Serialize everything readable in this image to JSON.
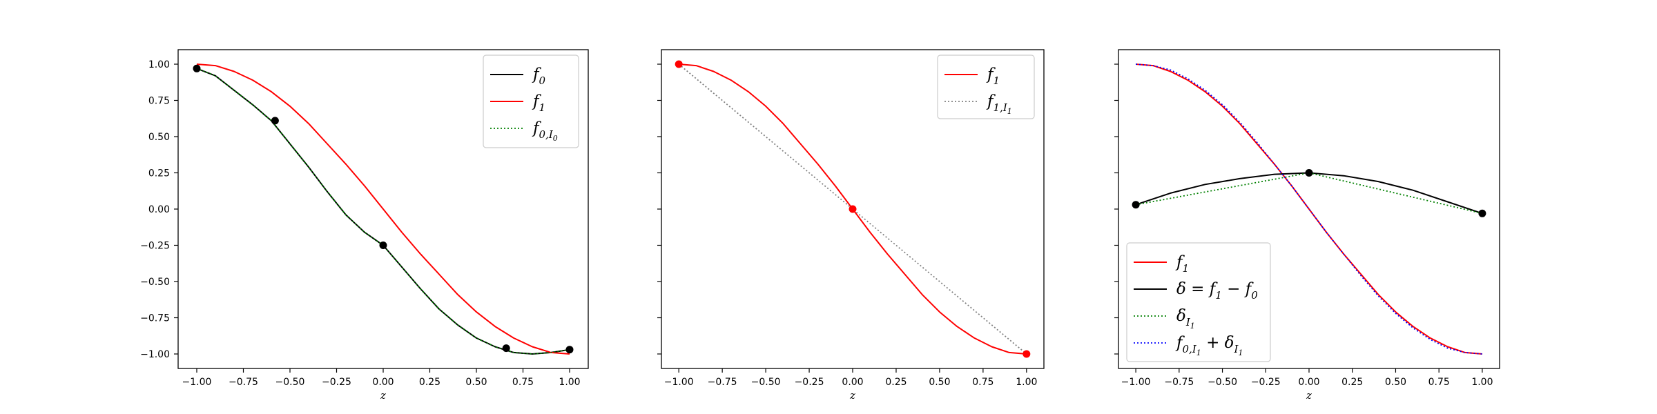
{
  "chart_data": [
    {
      "type": "line",
      "xlabel": "z",
      "ylabel": "",
      "xlim": [
        -1.1,
        1.1
      ],
      "ylim": [
        -1.1,
        1.1
      ],
      "xticks": [
        "−1.00",
        "−0.75",
        "−0.50",
        "−0.25",
        "0.00",
        "0.25",
        "0.50",
        "0.75",
        "1.00"
      ],
      "yticks": [
        "−1.00",
        "−0.75",
        "−0.50",
        "−0.25",
        "0.00",
        "0.25",
        "0.50",
        "0.75",
        "1.00"
      ],
      "ytick_labels_shown": true,
      "legend_position": "upper-right",
      "series": [
        {
          "legend": "f_0",
          "color": "#000000",
          "style": "solid",
          "x": [
            -1.0,
            -0.9,
            -0.8,
            -0.7,
            -0.6,
            -0.5,
            -0.4,
            -0.3,
            -0.2,
            -0.1,
            0.0,
            0.1,
            0.2,
            0.3,
            0.4,
            0.5,
            0.6,
            0.7,
            0.8,
            0.9,
            1.0
          ],
          "y": [
            0.97,
            0.92,
            0.82,
            0.72,
            0.61,
            0.45,
            0.29,
            0.12,
            -0.04,
            -0.16,
            -0.25,
            -0.4,
            -0.55,
            -0.69,
            -0.8,
            -0.89,
            -0.95,
            -0.99,
            -1.0,
            -0.99,
            -0.97
          ]
        },
        {
          "legend": "f_1",
          "color": "#ff0000",
          "style": "solid",
          "x": [
            -1.0,
            -0.9,
            -0.8,
            -0.7,
            -0.6,
            -0.5,
            -0.4,
            -0.3,
            -0.2,
            -0.1,
            0.0,
            0.1,
            0.2,
            0.3,
            0.4,
            0.5,
            0.6,
            0.7,
            0.8,
            0.9,
            1.0
          ],
          "y": [
            1.0,
            0.99,
            0.95,
            0.89,
            0.81,
            0.71,
            0.59,
            0.45,
            0.31,
            0.16,
            0.0,
            -0.16,
            -0.31,
            -0.45,
            -0.59,
            -0.71,
            -0.81,
            -0.89,
            -0.95,
            -0.99,
            -1.0
          ]
        },
        {
          "legend": "f_{0,I_0}",
          "color": "#008000",
          "style": "dotted",
          "x": [
            -1.0,
            -0.9,
            -0.8,
            -0.7,
            -0.6,
            -0.5,
            -0.4,
            -0.3,
            -0.2,
            -0.1,
            0.0,
            0.1,
            0.2,
            0.3,
            0.4,
            0.5,
            0.6,
            0.7,
            0.8,
            0.9,
            1.0
          ],
          "y": [
            0.97,
            0.92,
            0.82,
            0.72,
            0.61,
            0.45,
            0.29,
            0.12,
            -0.04,
            -0.16,
            -0.25,
            -0.4,
            -0.55,
            -0.69,
            -0.8,
            -0.89,
            -0.95,
            -0.99,
            -1.0,
            -0.99,
            -0.97
          ]
        }
      ],
      "markers": [
        {
          "color": "#000000",
          "x": [
            -1.0,
            -0.58,
            0.0,
            0.66,
            1.0
          ],
          "y": [
            0.97,
            0.61,
            -0.25,
            -0.96,
            -0.97
          ]
        }
      ]
    },
    {
      "type": "line",
      "xlabel": "z",
      "ylabel": "",
      "xlim": [
        -1.1,
        1.1
      ],
      "ylim": [
        -1.1,
        1.1
      ],
      "xticks": [
        "−1.00",
        "−0.75",
        "−0.50",
        "−0.25",
        "0.00",
        "0.25",
        "0.50",
        "0.75",
        "1.00"
      ],
      "yticks": [
        "−1.00",
        "−0.75",
        "−0.50",
        "−0.25",
        "0.00",
        "0.25",
        "0.50",
        "0.75",
        "1.00"
      ],
      "ytick_labels_shown": false,
      "legend_position": "upper-right",
      "series": [
        {
          "legend": "f_1",
          "color": "#ff0000",
          "style": "solid",
          "x": [
            -1.0,
            -0.9,
            -0.8,
            -0.7,
            -0.6,
            -0.5,
            -0.4,
            -0.3,
            -0.2,
            -0.1,
            0.0,
            0.1,
            0.2,
            0.3,
            0.4,
            0.5,
            0.6,
            0.7,
            0.8,
            0.9,
            1.0
          ],
          "y": [
            1.0,
            0.99,
            0.95,
            0.89,
            0.81,
            0.71,
            0.59,
            0.45,
            0.31,
            0.16,
            0.0,
            -0.16,
            -0.31,
            -0.45,
            -0.59,
            -0.71,
            -0.81,
            -0.89,
            -0.95,
            -0.99,
            -1.0
          ]
        },
        {
          "legend": "f_{1,I_1}",
          "color": "#808080",
          "style": "dotted",
          "x": [
            -1.0,
            0.0,
            1.0
          ],
          "y": [
            1.0,
            0.0,
            -1.0
          ]
        }
      ],
      "markers": [
        {
          "color": "#ff0000",
          "x": [
            -1.0,
            0.0,
            1.0
          ],
          "y": [
            1.0,
            0.0,
            -1.0
          ]
        }
      ]
    },
    {
      "type": "line",
      "xlabel": "z",
      "ylabel": "",
      "xlim": [
        -1.1,
        1.1
      ],
      "ylim": [
        -1.1,
        1.1
      ],
      "xticks": [
        "−1.00",
        "−0.75",
        "−0.50",
        "−0.25",
        "0.00",
        "0.25",
        "0.50",
        "0.75",
        "1.00"
      ],
      "yticks": [
        "−1.00",
        "−0.75",
        "−0.50",
        "−0.25",
        "0.00",
        "0.25",
        "0.50",
        "0.75",
        "1.00"
      ],
      "ytick_labels_shown": false,
      "legend_position": "lower-left",
      "series": [
        {
          "legend": "f_1",
          "color": "#ff0000",
          "style": "solid",
          "x": [
            -1.0,
            -0.9,
            -0.8,
            -0.7,
            -0.6,
            -0.5,
            -0.4,
            -0.3,
            -0.2,
            -0.1,
            0.0,
            0.1,
            0.2,
            0.3,
            0.4,
            0.5,
            0.6,
            0.7,
            0.8,
            0.9,
            1.0
          ],
          "y": [
            1.0,
            0.99,
            0.95,
            0.89,
            0.81,
            0.71,
            0.59,
            0.45,
            0.31,
            0.16,
            0.0,
            -0.16,
            -0.31,
            -0.45,
            -0.59,
            -0.71,
            -0.81,
            -0.89,
            -0.95,
            -0.99,
            -1.0
          ]
        },
        {
          "legend": "δ = f_1 − f_0",
          "color": "#000000",
          "style": "solid",
          "x": [
            -1.0,
            -0.8,
            -0.6,
            -0.4,
            -0.2,
            0.0,
            0.2,
            0.4,
            0.6,
            0.8,
            1.0
          ],
          "y": [
            0.03,
            0.11,
            0.17,
            0.21,
            0.24,
            0.25,
            0.23,
            0.19,
            0.13,
            0.05,
            -0.03
          ]
        },
        {
          "legend": "δ_{I_1}",
          "color": "#008000",
          "style": "dotted",
          "x": [
            -1.0,
            0.0,
            1.0
          ],
          "y": [
            0.03,
            0.25,
            -0.03
          ]
        },
        {
          "legend": "f_{0,I_1} + δ_{I_1}",
          "color": "#0000ff",
          "style": "dotted",
          "x": [
            -1.0,
            -0.9,
            -0.8,
            -0.7,
            -0.6,
            -0.5,
            -0.4,
            -0.3,
            -0.2,
            -0.1,
            0.0,
            0.1,
            0.2,
            0.3,
            0.4,
            0.5,
            0.6,
            0.7,
            0.8,
            0.9,
            1.0
          ],
          "y": [
            1.0,
            0.99,
            0.96,
            0.9,
            0.82,
            0.72,
            0.6,
            0.46,
            0.31,
            0.16,
            0.0,
            -0.16,
            -0.31,
            -0.46,
            -0.6,
            -0.72,
            -0.82,
            -0.9,
            -0.96,
            -0.99,
            -1.0
          ]
        }
      ],
      "markers": [
        {
          "color": "#000000",
          "x": [
            -1.0,
            0.0,
            1.0
          ],
          "y": [
            0.03,
            0.25,
            -0.03
          ]
        }
      ]
    }
  ]
}
